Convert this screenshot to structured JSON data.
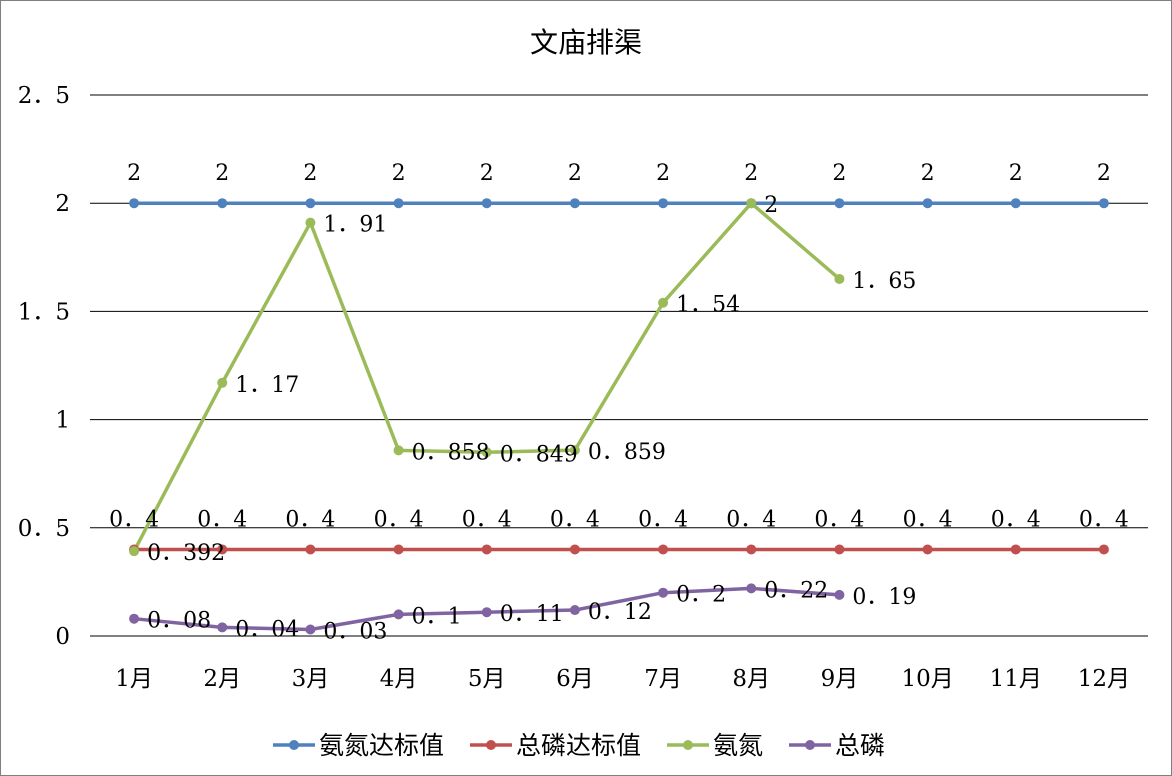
{
  "chart_data": {
    "type": "line",
    "title": "文庙排渠",
    "xlabel": "",
    "ylabel": "",
    "ylim": [
      0,
      2.5
    ],
    "yticks": [
      0,
      0.5,
      1,
      1.5,
      2,
      2.5
    ],
    "ytick_labels": [
      "0",
      "0.5",
      "1",
      "1.5",
      "2",
      "2.5"
    ],
    "categories": [
      "1月",
      "2月",
      "3月",
      "4月",
      "5月",
      "6月",
      "7月",
      "8月",
      "9月",
      "10月",
      "11月",
      "12月"
    ],
    "grid": true,
    "legend_position": "bottom",
    "series": [
      {
        "name": "氨氮达标值",
        "color": "#4F81BD",
        "values": [
          2,
          2,
          2,
          2,
          2,
          2,
          2,
          2,
          2,
          2,
          2,
          2
        ],
        "labels": [
          "2",
          "2",
          "2",
          "2",
          "2",
          "2",
          "2",
          "2",
          "2",
          "2",
          "2",
          "2"
        ],
        "label_position": "above"
      },
      {
        "name": "总磷达标值",
        "color": "#C0504D",
        "values": [
          0.4,
          0.4,
          0.4,
          0.4,
          0.4,
          0.4,
          0.4,
          0.4,
          0.4,
          0.4,
          0.4,
          0.4
        ],
        "labels": [
          "0.4",
          "0.4",
          "0.4",
          "0.4",
          "0.4",
          "0.4",
          "0.4",
          "0.4",
          "0.4",
          "0.4",
          "0.4",
          "0.4"
        ],
        "label_position": "above"
      },
      {
        "name": "氨氮",
        "color": "#9BBB59",
        "values": [
          0.392,
          1.17,
          1.91,
          0.858,
          0.849,
          0.859,
          1.54,
          2,
          1.65,
          null,
          null,
          null
        ],
        "labels": [
          "0.392",
          "1.17",
          "1.91",
          "0.858",
          "0.849",
          "0.859",
          "1.54",
          "2",
          "1.65",
          null,
          null,
          null
        ],
        "label_position": "right"
      },
      {
        "name": "总磷",
        "color": "#8064A2",
        "values": [
          0.08,
          0.04,
          0.03,
          0.1,
          0.11,
          0.12,
          0.2,
          0.22,
          0.19,
          null,
          null,
          null
        ],
        "labels": [
          "0.08",
          "0.04",
          "0.03",
          "0.1",
          "0.11",
          "0.12",
          "0.2",
          "0.22",
          "0.19",
          null,
          null,
          null
        ],
        "label_position": "right"
      }
    ]
  }
}
